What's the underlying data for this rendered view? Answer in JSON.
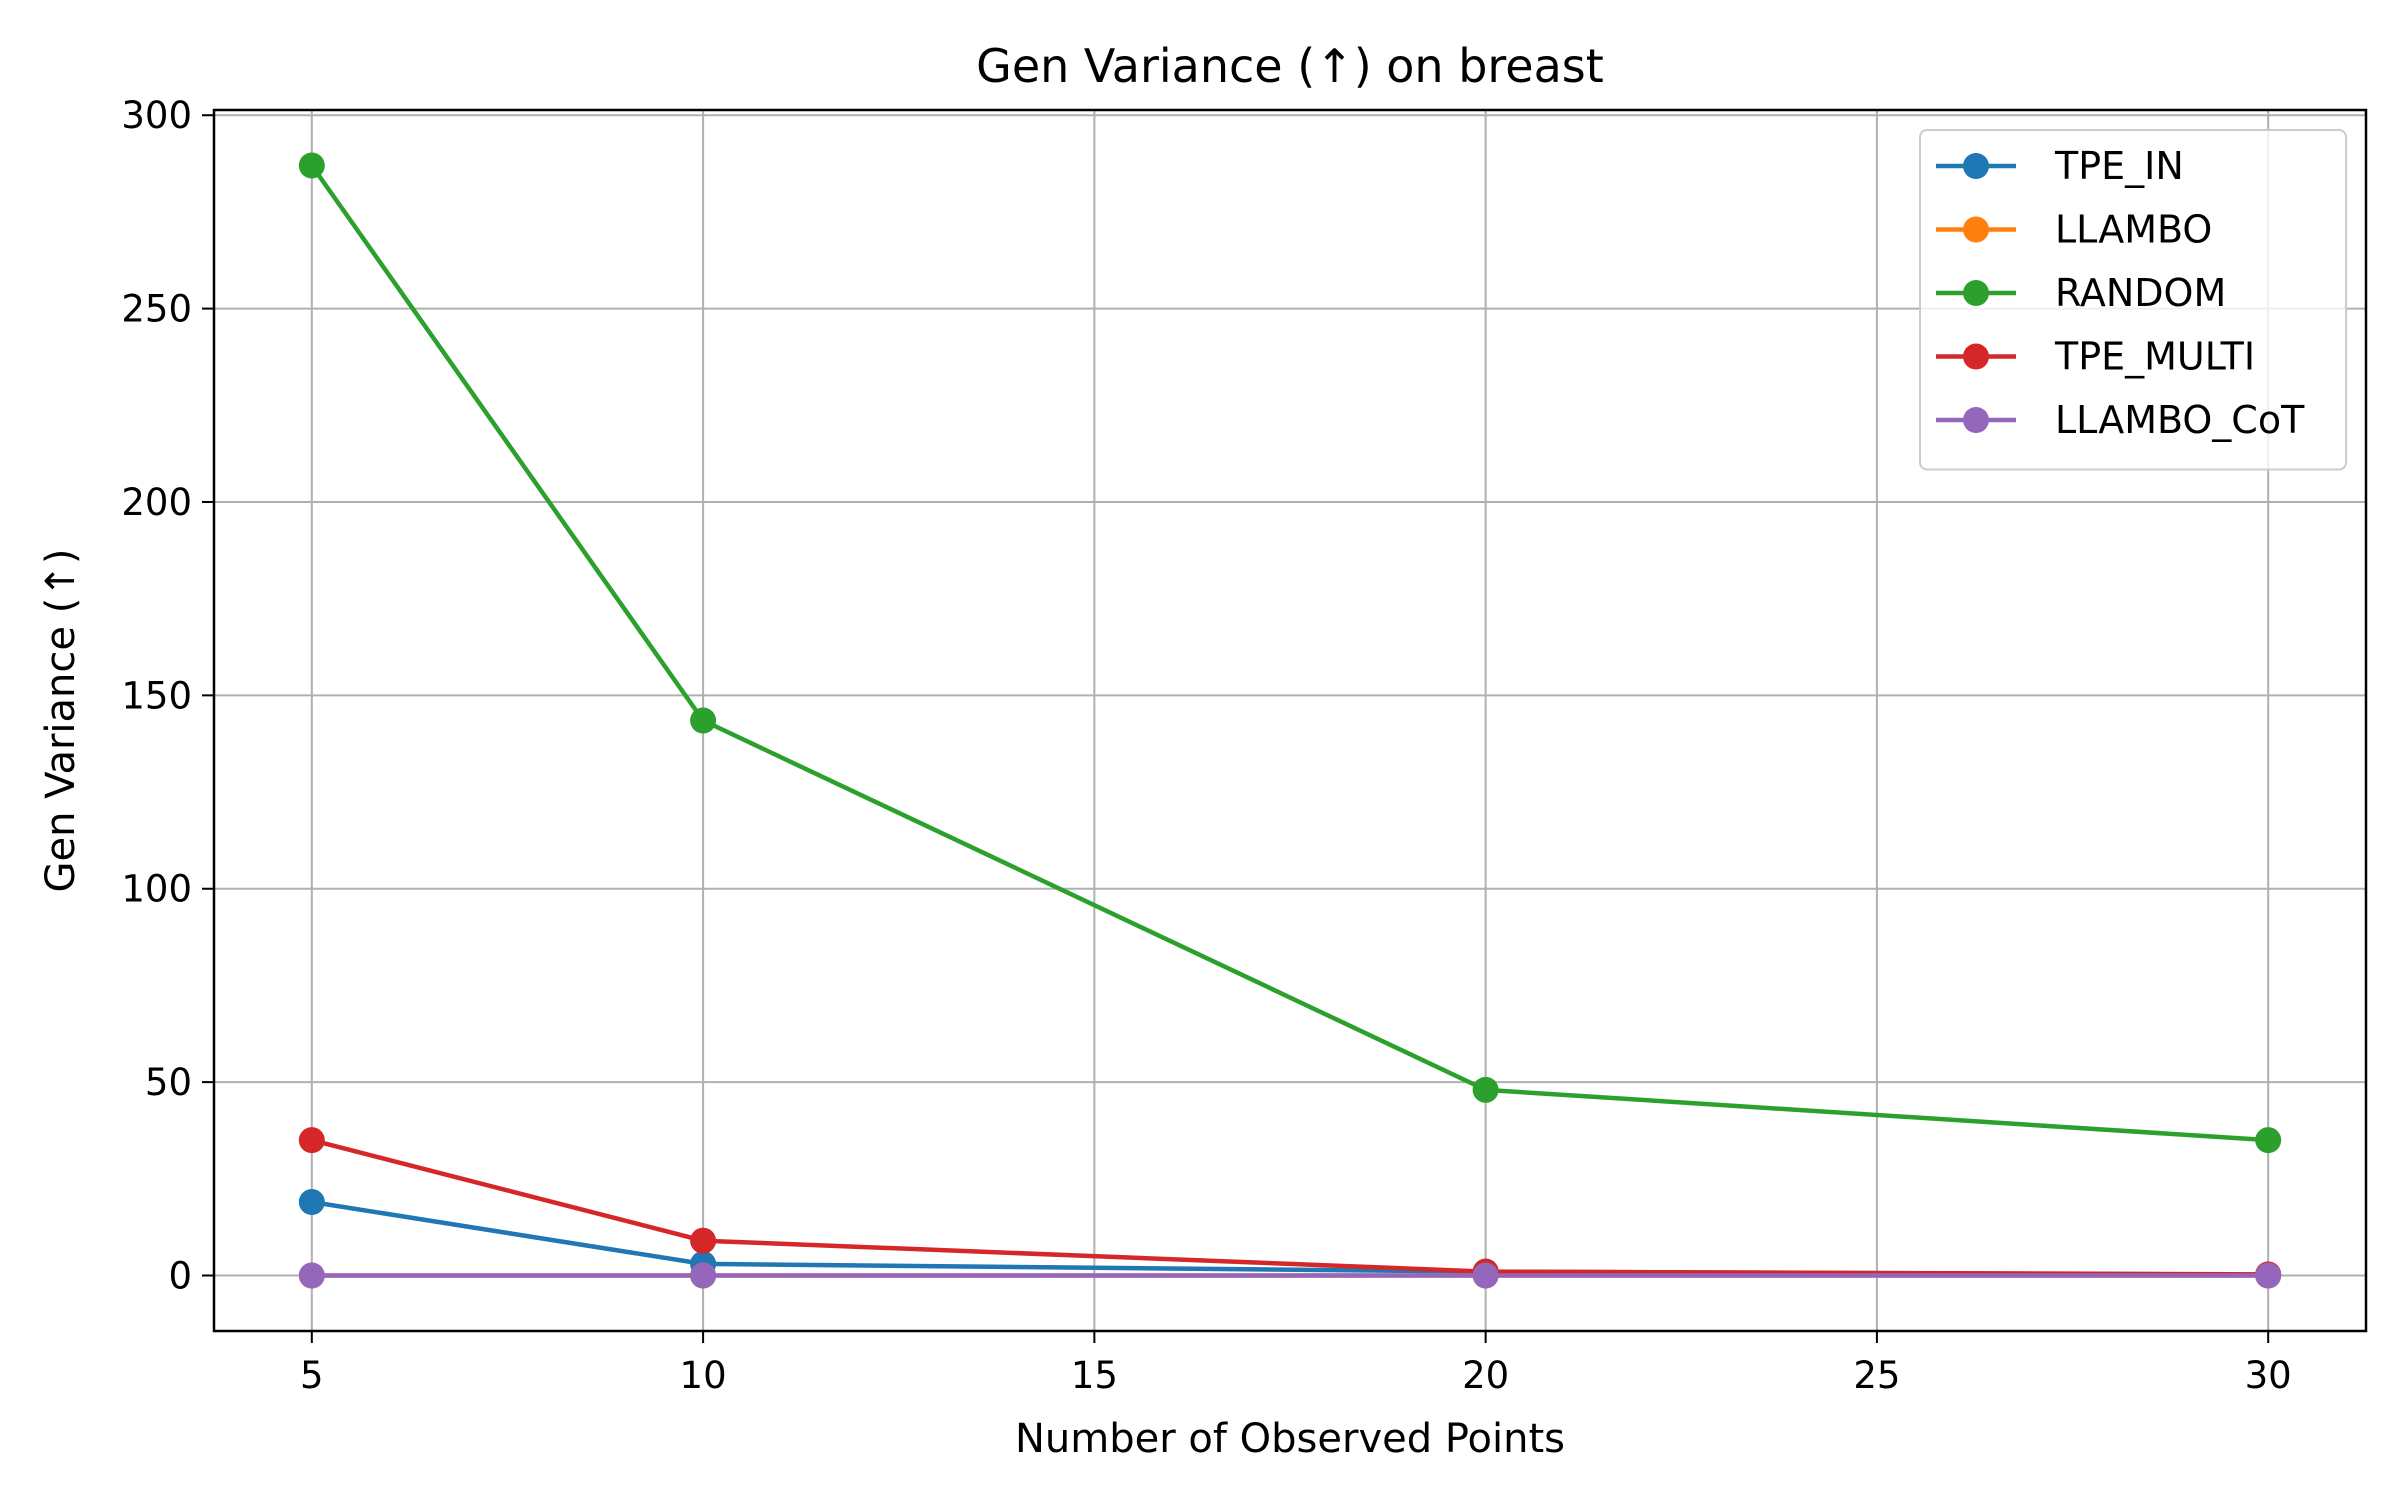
{
  "chart_data": {
    "type": "line",
    "title": "Gen Variance (↑) on breast",
    "xlabel": "Number of Observed Points",
    "ylabel": "Gen Variance (↑)",
    "xlim": [
      3.75,
      31.25
    ],
    "ylim": [
      -14.35,
      301.35
    ],
    "xticks": [
      5,
      10,
      15,
      20,
      25,
      30
    ],
    "yticks": [
      0,
      50,
      100,
      150,
      200,
      250,
      300
    ],
    "grid": true,
    "legend_position": "top-right",
    "x": [
      5,
      10,
      20,
      30
    ],
    "series": [
      {
        "name": "TPE_IN",
        "color": "#1f77b4",
        "values": [
          19,
          3,
          1,
          0.2
        ]
      },
      {
        "name": "LLAMBO",
        "color": "#ff7f0e",
        "values": [
          0,
          0,
          0,
          0
        ]
      },
      {
        "name": "RANDOM",
        "color": "#2ca02c",
        "values": [
          287,
          143.5,
          48,
          35
        ]
      },
      {
        "name": "TPE_MULTI",
        "color": "#d62728",
        "values": [
          35,
          9,
          1,
          0.3
        ]
      },
      {
        "name": "LLAMBO_CoT",
        "color": "#9467bd",
        "values": [
          0,
          0,
          0,
          0
        ]
      }
    ]
  }
}
